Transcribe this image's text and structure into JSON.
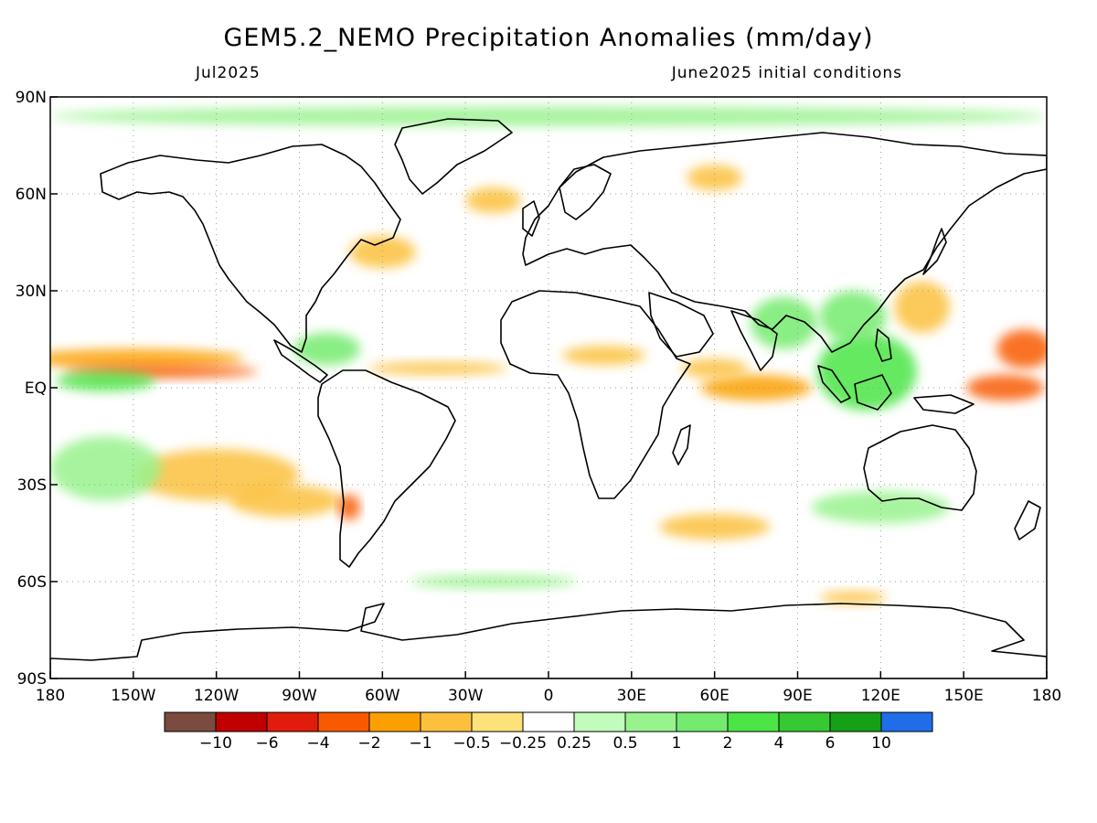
{
  "title": "GEM5.2_NEMO Precipitation Anomalies (mm/day)",
  "subtitle_left": "Jul2025",
  "subtitle_right": "June2025 initial conditions",
  "lat_labels": [
    "90N",
    "60N",
    "30N",
    "EQ",
    "30S",
    "60S",
    "90S"
  ],
  "lat_values": [
    90,
    60,
    30,
    0,
    -30,
    -60,
    -90
  ],
  "lon_labels": [
    "180",
    "150W",
    "120W",
    "90W",
    "60W",
    "30W",
    "0",
    "30E",
    "60E",
    "90E",
    "120E",
    "150E",
    "180"
  ],
  "lon_values": [
    -180,
    -150,
    -120,
    -90,
    -60,
    -30,
    0,
    30,
    60,
    90,
    120,
    150,
    180
  ],
  "colorbar": {
    "colors": [
      "#7a4b3e",
      "#c00000",
      "#e21c0c",
      "#f85a00",
      "#fba000",
      "#fcc13c",
      "#fde27a",
      "#ffffff",
      "#c2fcbd",
      "#98f28d",
      "#74eb6f",
      "#4be546",
      "#36c932",
      "#16a018",
      "#1f6ee8"
    ],
    "labels": [
      "−10",
      "−6",
      "−4",
      "−2",
      "−1",
      "−0.5",
      "−0.25",
      "0.25",
      "0.5",
      "1",
      "2",
      "4",
      "6",
      "10"
    ]
  },
  "chart_data": {
    "type": "heatmap",
    "variable": "Precipitation anomaly",
    "units": "mm/day",
    "domain": {
      "lon": [
        -180,
        180
      ],
      "lat": [
        -90,
        90
      ]
    },
    "levels": [
      -10,
      -6,
      -4,
      -2,
      -1,
      -0.5,
      -0.25,
      0.25,
      0.5,
      1,
      2,
      4,
      6,
      10
    ],
    "grid": "dotted 30 degree",
    "regions": [
      {
        "lon": 172,
        "lat": 12,
        "rx": 10,
        "ry": 6,
        "value": -3
      },
      {
        "lon": 165,
        "lat": 0,
        "rx": 14,
        "ry": 4,
        "value": -3
      },
      {
        "lon": -150,
        "lat": 9,
        "rx": 40,
        "ry": 3,
        "value": -1.5
      },
      {
        "lon": -140,
        "lat": 5,
        "rx": 35,
        "ry": 2,
        "value": -3
      },
      {
        "lon": -160,
        "lat": 2,
        "rx": 18,
        "ry": 3,
        "value": 2
      },
      {
        "lon": -120,
        "lat": -27,
        "rx": 30,
        "ry": 8,
        "value": -0.6
      },
      {
        "lon": -95,
        "lat": -35,
        "rx": 20,
        "ry": 5,
        "value": -0.6
      },
      {
        "lon": -72,
        "lat": -37,
        "rx": 4,
        "ry": 4,
        "value": -2.5
      },
      {
        "lon": -160,
        "lat": -25,
        "rx": 20,
        "ry": 10,
        "value": 0.8
      },
      {
        "lon": -40,
        "lat": 6,
        "rx": 25,
        "ry": 2,
        "value": -0.6
      },
      {
        "lon": -80,
        "lat": 12,
        "rx": 12,
        "ry": 5,
        "value": 1.2
      },
      {
        "lon": 75,
        "lat": 0,
        "rx": 20,
        "ry": 4,
        "value": -1.5
      },
      {
        "lon": 60,
        "lat": 6,
        "rx": 12,
        "ry": 3,
        "value": -0.6
      },
      {
        "lon": 115,
        "lat": 5,
        "rx": 18,
        "ry": 12,
        "value": 2.5
      },
      {
        "lon": 110,
        "lat": 22,
        "rx": 12,
        "ry": 8,
        "value": 1.5
      },
      {
        "lon": 85,
        "lat": 20,
        "rx": 12,
        "ry": 8,
        "value": 1.2
      },
      {
        "lon": 135,
        "lat": 25,
        "rx": 10,
        "ry": 8,
        "value": -0.6
      },
      {
        "lon": 20,
        "lat": 10,
        "rx": 15,
        "ry": 3,
        "value": -0.6
      },
      {
        "lon": -20,
        "lat": 58,
        "rx": 10,
        "ry": 4,
        "value": -0.6
      },
      {
        "lon": 60,
        "lat": 65,
        "rx": 10,
        "ry": 4,
        "value": -0.6
      },
      {
        "lon": -60,
        "lat": 42,
        "rx": 12,
        "ry": 5,
        "value": -0.6
      },
      {
        "lon": 60,
        "lat": -43,
        "rx": 20,
        "ry": 4,
        "value": -0.6
      },
      {
        "lon": 120,
        "lat": -37,
        "rx": 25,
        "ry": 5,
        "value": 0.8
      },
      {
        "lon": 110,
        "lat": -65,
        "rx": 12,
        "ry": 2,
        "value": -0.6
      },
      {
        "lon": -20,
        "lat": -60,
        "rx": 30,
        "ry": 2,
        "value": 0.8
      },
      {
        "lon": 0,
        "lat": 84,
        "rx": 180,
        "ry": 3,
        "value": 0.5
      }
    ]
  }
}
